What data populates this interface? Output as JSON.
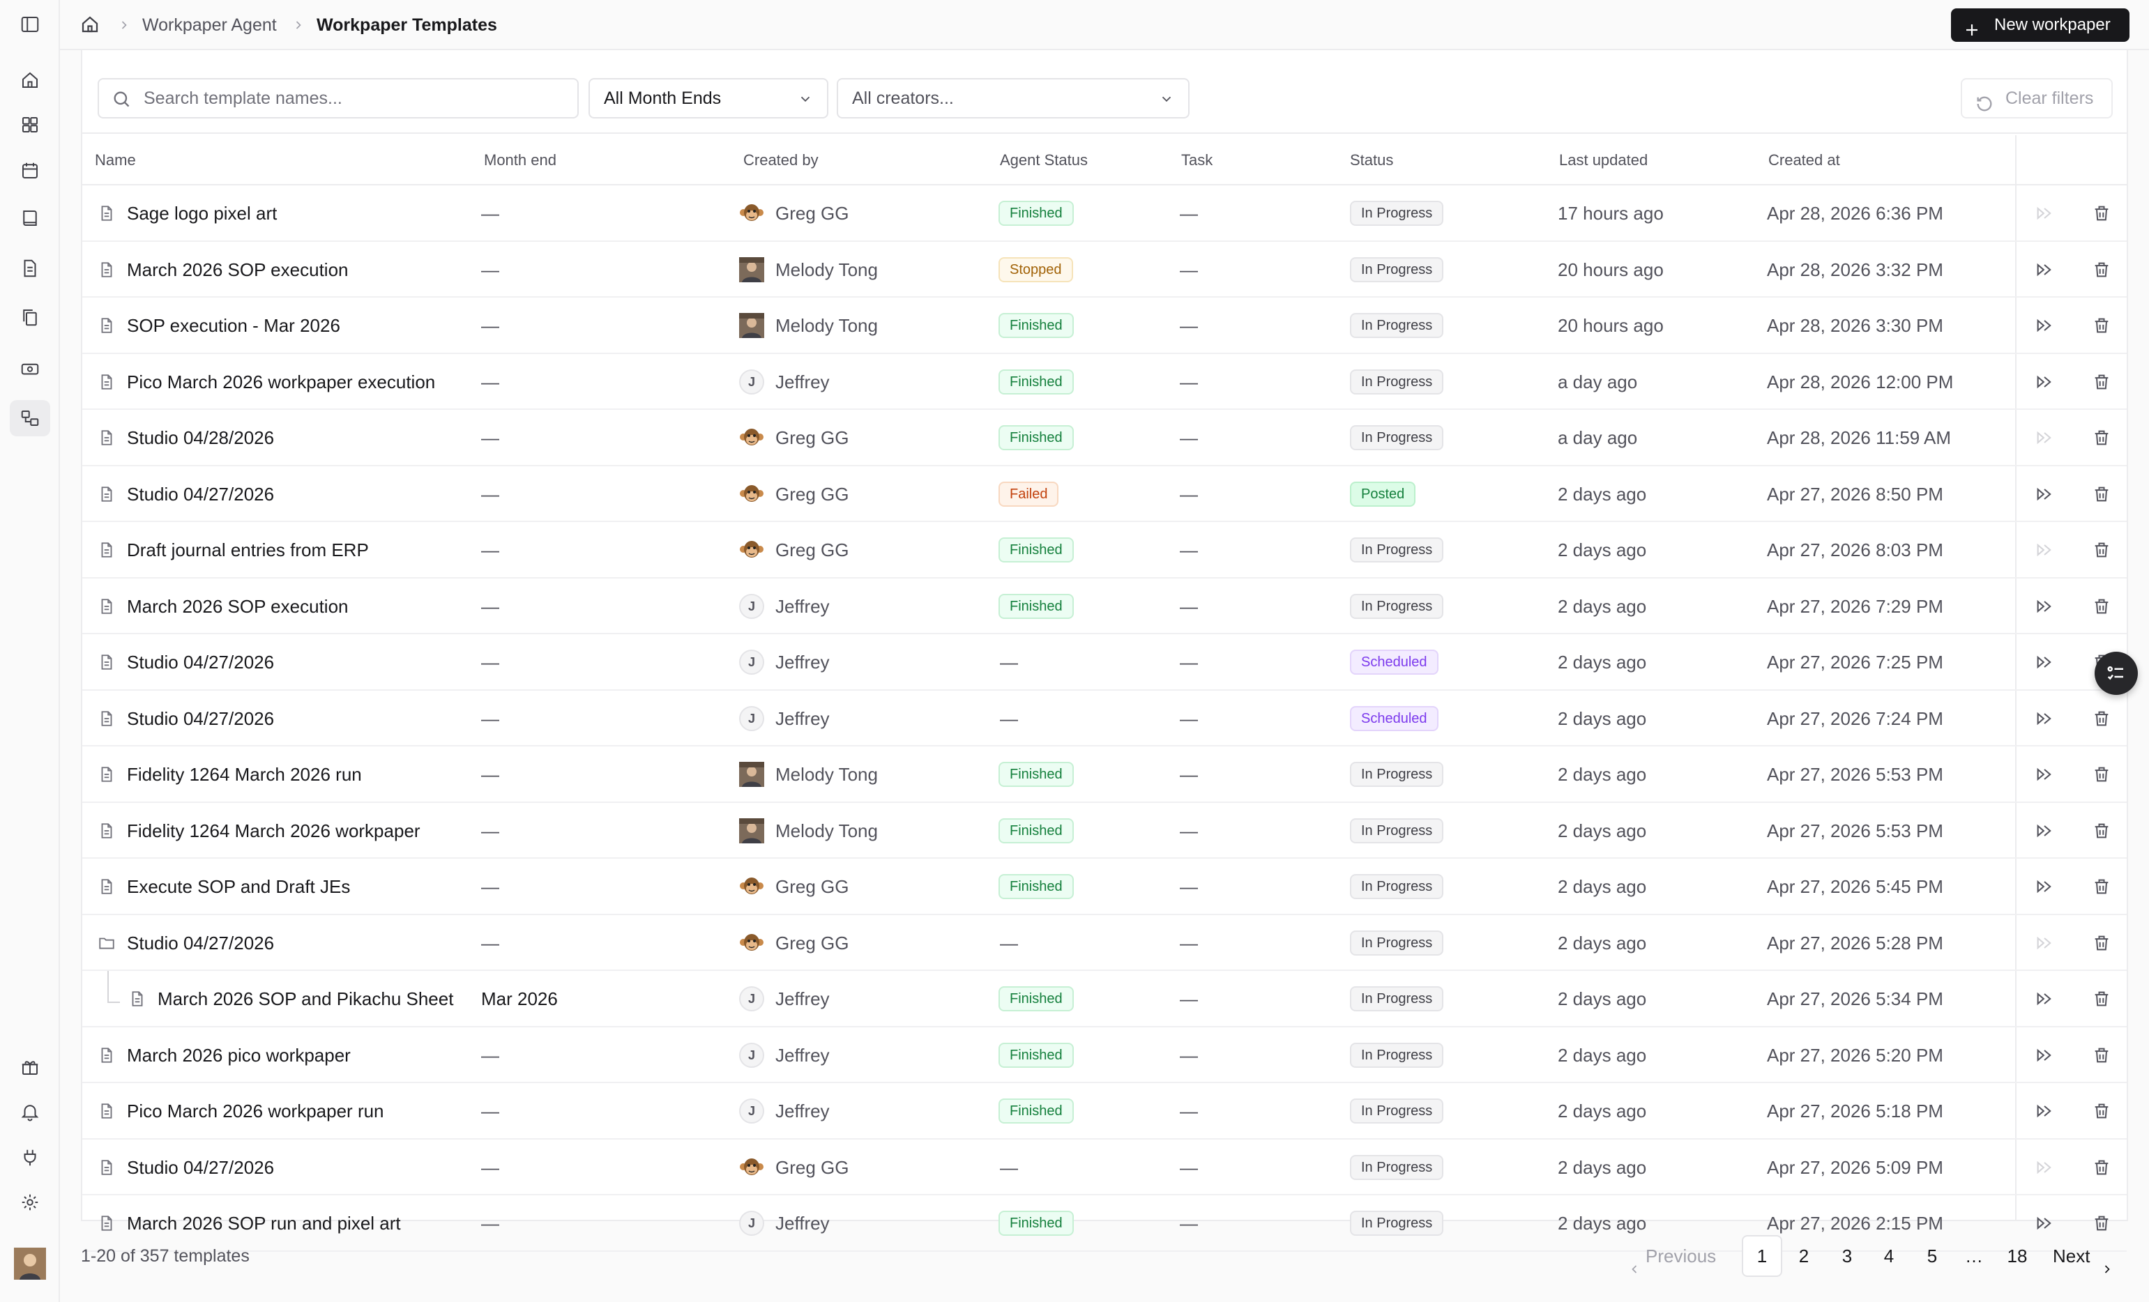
{
  "breadcrumb": {
    "parent": "Workpaper Agent",
    "current": "Workpaper Templates"
  },
  "header": {
    "new_button": "New workpaper"
  },
  "filters": {
    "search_placeholder": "Search template names...",
    "month_end": "All Month Ends",
    "creators": "All creators...",
    "clear": "Clear filters"
  },
  "columns": {
    "name": "Name",
    "month_end": "Month end",
    "created_by": "Created by",
    "agent_status": "Agent Status",
    "task": "Task",
    "status": "Status",
    "last_updated": "Last updated",
    "created_at": "Created at"
  },
  "rows": [
    {
      "name": "Sage logo pixel art",
      "icon": "document-icon",
      "month_end": "—",
      "creator": "Greg GG",
      "creator_avatar": "monkey",
      "agent_status": "Finished",
      "task": "—",
      "status": "In Progress",
      "updated": "17 hours ago",
      "created": "Apr 28, 2026 6:36 PM",
      "run_enabled": false
    },
    {
      "name": "March 2026 SOP execution",
      "icon": "document-icon",
      "month_end": "—",
      "creator": "Melody Tong",
      "creator_avatar": "photo",
      "agent_status": "Stopped",
      "task": "—",
      "status": "In Progress",
      "updated": "20 hours ago",
      "created": "Apr 28, 2026 3:32 PM",
      "run_enabled": true
    },
    {
      "name": "SOP execution - Mar 2026",
      "icon": "document-icon",
      "month_end": "—",
      "creator": "Melody Tong",
      "creator_avatar": "photo",
      "agent_status": "Finished",
      "task": "—",
      "status": "In Progress",
      "updated": "20 hours ago",
      "created": "Apr 28, 2026 3:30 PM",
      "run_enabled": true
    },
    {
      "name": "Pico March 2026 workpaper execution",
      "icon": "document-icon",
      "month_end": "—",
      "creator": "Jeffrey",
      "creator_avatar": "J",
      "agent_status": "Finished",
      "task": "—",
      "status": "In Progress",
      "updated": "a day ago",
      "created": "Apr 28, 2026 12:00 PM",
      "run_enabled": true
    },
    {
      "name": "Studio 04/28/2026",
      "icon": "document-icon",
      "month_end": "—",
      "creator": "Greg GG",
      "creator_avatar": "monkey",
      "agent_status": "Finished",
      "task": "—",
      "status": "In Progress",
      "updated": "a day ago",
      "created": "Apr 28, 2026 11:59 AM",
      "run_enabled": false
    },
    {
      "name": "Studio 04/27/2026",
      "icon": "document-icon",
      "month_end": "—",
      "creator": "Greg GG",
      "creator_avatar": "monkey",
      "agent_status": "Failed",
      "task": "—",
      "status": "Posted",
      "updated": "2 days ago",
      "created": "Apr 27, 2026 8:50 PM",
      "run_enabled": true
    },
    {
      "name": "Draft journal entries from ERP",
      "icon": "document-icon",
      "month_end": "—",
      "creator": "Greg GG",
      "creator_avatar": "monkey",
      "agent_status": "Finished",
      "task": "—",
      "status": "In Progress",
      "updated": "2 days ago",
      "created": "Apr 27, 2026 8:03 PM",
      "run_enabled": false
    },
    {
      "name": "March 2026 SOP execution",
      "icon": "document-icon",
      "month_end": "—",
      "creator": "Jeffrey",
      "creator_avatar": "J",
      "agent_status": "Finished",
      "task": "—",
      "status": "In Progress",
      "updated": "2 days ago",
      "created": "Apr 27, 2026 7:29 PM",
      "run_enabled": true
    },
    {
      "name": "Studio 04/27/2026",
      "icon": "document-icon",
      "month_end": "—",
      "creator": "Jeffrey",
      "creator_avatar": "J",
      "agent_status": "—",
      "task": "—",
      "status": "Scheduled",
      "updated": "2 days ago",
      "created": "Apr 27, 2026 7:25 PM",
      "run_enabled": true
    },
    {
      "name": "Studio 04/27/2026",
      "icon": "document-icon",
      "month_end": "—",
      "creator": "Jeffrey",
      "creator_avatar": "J",
      "agent_status": "—",
      "task": "—",
      "status": "Scheduled",
      "updated": "2 days ago",
      "created": "Apr 27, 2026 7:24 PM",
      "run_enabled": true
    },
    {
      "name": "Fidelity 1264 March 2026 run",
      "icon": "document-icon",
      "month_end": "—",
      "creator": "Melody Tong",
      "creator_avatar": "photo",
      "agent_status": "Finished",
      "task": "—",
      "status": "In Progress",
      "updated": "2 days ago",
      "created": "Apr 27, 2026 5:53 PM",
      "run_enabled": true
    },
    {
      "name": "Fidelity 1264 March 2026 workpaper",
      "icon": "document-icon",
      "month_end": "—",
      "creator": "Melody Tong",
      "creator_avatar": "photo",
      "agent_status": "Finished",
      "task": "—",
      "status": "In Progress",
      "updated": "2 days ago",
      "created": "Apr 27, 2026 5:53 PM",
      "run_enabled": true
    },
    {
      "name": "Execute SOP and Draft JEs",
      "icon": "document-icon",
      "month_end": "—",
      "creator": "Greg GG",
      "creator_avatar": "monkey",
      "agent_status": "Finished",
      "task": "—",
      "status": "In Progress",
      "updated": "2 days ago",
      "created": "Apr 27, 2026 5:45 PM",
      "run_enabled": true
    },
    {
      "name": "Studio 04/27/2026",
      "icon": "folder-icon",
      "month_end": "—",
      "creator": "Greg GG",
      "creator_avatar": "monkey",
      "agent_status": "—",
      "task": "—",
      "status": "In Progress",
      "updated": "2 days ago",
      "created": "Apr 27, 2026 5:28 PM",
      "run_enabled": false
    },
    {
      "name": "March 2026 SOP and Pikachu Sheet",
      "icon": "document-icon",
      "child": true,
      "month_end": "Mar 2026",
      "creator": "Jeffrey",
      "creator_avatar": "J",
      "agent_status": "Finished",
      "task": "—",
      "status": "In Progress",
      "updated": "2 days ago",
      "created": "Apr 27, 2026 5:34 PM",
      "run_enabled": true
    },
    {
      "name": "March 2026 pico workpaper",
      "icon": "document-icon",
      "month_end": "—",
      "creator": "Jeffrey",
      "creator_avatar": "J",
      "agent_status": "Finished",
      "task": "—",
      "status": "In Progress",
      "updated": "2 days ago",
      "created": "Apr 27, 2026 5:20 PM",
      "run_enabled": true
    },
    {
      "name": "Pico March 2026 workpaper run",
      "icon": "document-icon",
      "month_end": "—",
      "creator": "Jeffrey",
      "creator_avatar": "J",
      "agent_status": "Finished",
      "task": "—",
      "status": "In Progress",
      "updated": "2 days ago",
      "created": "Apr 27, 2026 5:18 PM",
      "run_enabled": true
    },
    {
      "name": "Studio 04/27/2026",
      "icon": "document-icon",
      "month_end": "—",
      "creator": "Greg GG",
      "creator_avatar": "monkey",
      "agent_status": "—",
      "task": "—",
      "status": "In Progress",
      "updated": "2 days ago",
      "created": "Apr 27, 2026 5:09 PM",
      "run_enabled": false
    },
    {
      "name": "March 2026 SOP run and pixel art",
      "icon": "document-icon",
      "month_end": "—",
      "creator": "Jeffrey",
      "creator_avatar": "J",
      "agent_status": "Finished",
      "task": "—",
      "status": "In Progress",
      "updated": "2 days ago",
      "created": "Apr 27, 2026 2:15 PM",
      "run_enabled": true
    }
  ],
  "footer": {
    "count": "1-20 of 357 templates",
    "previous": "Previous",
    "next": "Next",
    "pages": [
      "1",
      "2",
      "3",
      "4",
      "5",
      "…",
      "18"
    ],
    "current_page": "1"
  }
}
